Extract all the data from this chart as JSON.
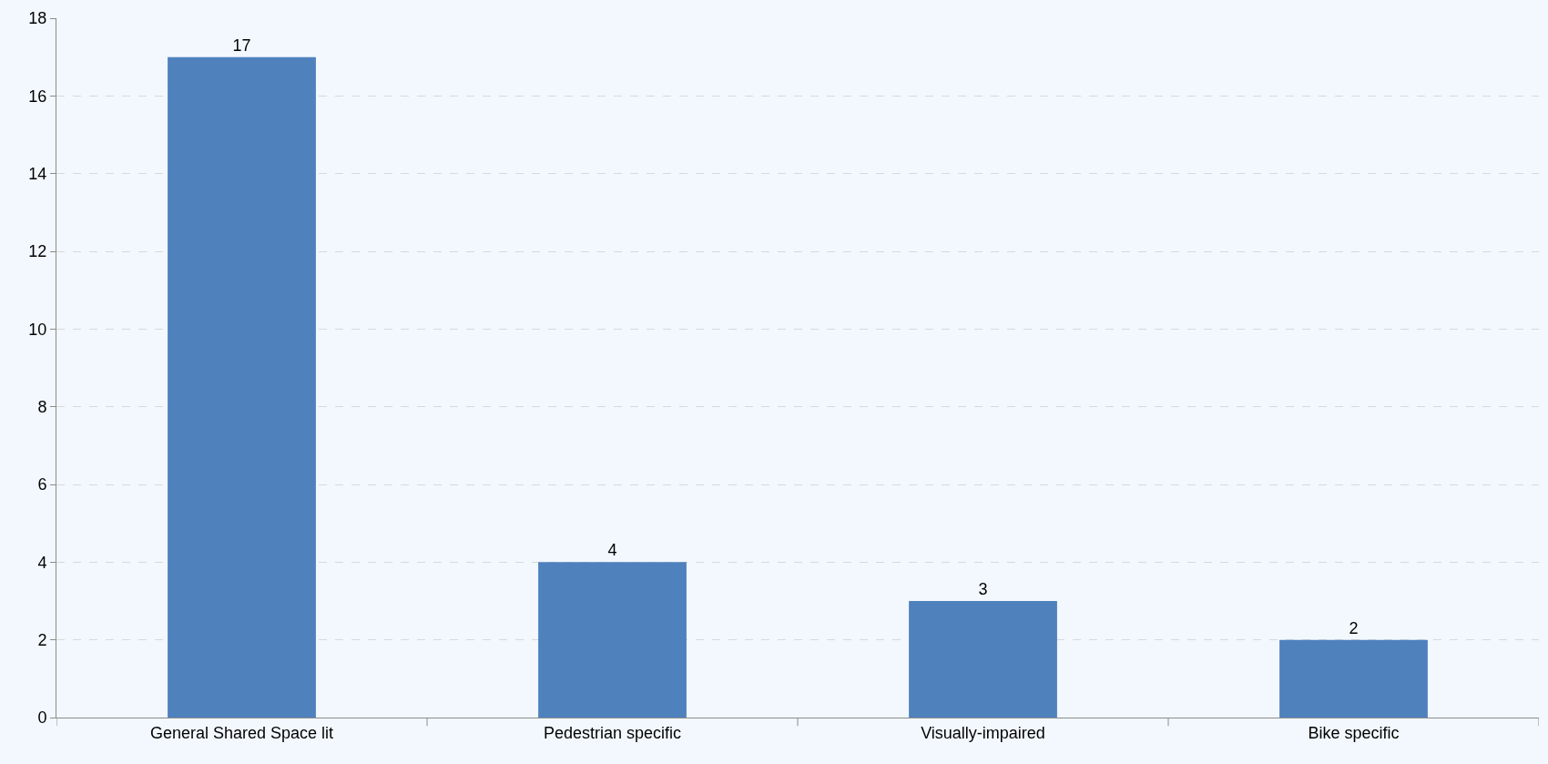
{
  "chart_data": {
    "type": "bar",
    "categories": [
      "General Shared Space lit",
      "Pedestrian specific",
      "Visually-impaired",
      "Bike specific"
    ],
    "values": [
      17,
      4,
      3,
      2
    ],
    "color": "#4f81bd",
    "ylim": [
      0,
      18
    ],
    "yticks": [
      0,
      2,
      4,
      6,
      8,
      10,
      12,
      14,
      16,
      18
    ],
    "grid": "y",
    "data_labels": true
  }
}
